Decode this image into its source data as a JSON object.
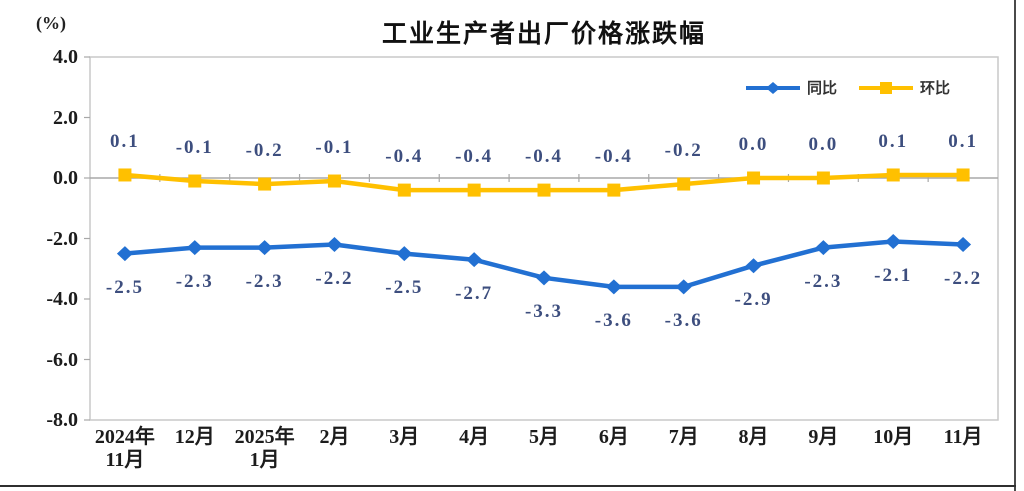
{
  "header": {
    "title": "工业生产者出厂价格涨跌幅",
    "unit_label": "(%)"
  },
  "chart_data": {
    "type": "line",
    "title": "工业生产者出厂价格涨跌幅",
    "unit": "(%)",
    "categories": [
      "2024年\n11月",
      "12月",
      "2025年\n1月",
      "2月",
      "3月",
      "4月",
      "5月",
      "6月",
      "7月",
      "8月",
      "9月",
      "10月",
      "11月"
    ],
    "series": [
      {
        "id": "yoy",
        "name": "同比",
        "color": "#2270d2",
        "marker": "diamond",
        "label_position": "below",
        "values": [
          -2.5,
          -2.3,
          -2.3,
          -2.2,
          -2.5,
          -2.7,
          -3.3,
          -3.6,
          -3.6,
          -2.9,
          -2.3,
          -2.1,
          -2.2
        ]
      },
      {
        "id": "mom",
        "name": "环比",
        "color": "#ffc000",
        "marker": "square",
        "label_position": "above",
        "values": [
          0.1,
          -0.1,
          -0.2,
          -0.1,
          -0.4,
          -0.4,
          -0.4,
          -0.4,
          -0.2,
          0.0,
          0.0,
          0.1,
          0.1
        ]
      }
    ],
    "y_axis": {
      "tick_labels": [
        "4.0",
        "2.0",
        "0.0",
        "-2.0",
        "-4.0",
        "-6.0",
        "-8.0"
      ],
      "max": 4.0,
      "min": -8.0
    },
    "grid": "zero-line-only",
    "legend_position": "top-right",
    "axis_color": "#a8a8a8",
    "border_color": "#c8c8c8",
    "label_color": "#3d4e7e"
  }
}
